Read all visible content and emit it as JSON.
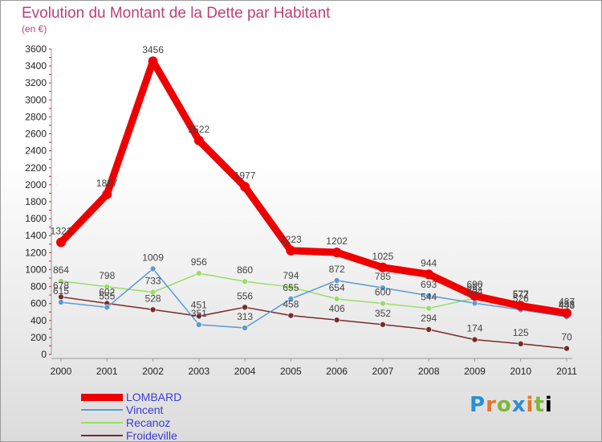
{
  "chart_data": {
    "type": "line",
    "title": "Evolution du Montant de la Dette par Habitant",
    "subtitle": "(en €)",
    "x": [
      "2000",
      "2001",
      "2002",
      "2003",
      "2004",
      "2005",
      "2006",
      "2007",
      "2008",
      "2009",
      "2010",
      "2011"
    ],
    "ylim": [
      0,
      3600
    ],
    "yticks": [
      0,
      200,
      400,
      600,
      800,
      1000,
      1200,
      1400,
      1600,
      1800,
      2000,
      2200,
      2400,
      2600,
      2800,
      3000,
      3200,
      3400,
      3600
    ],
    "grid": false,
    "legend_position": "bottom-left",
    "series": [
      {
        "name": "LOMBARD",
        "color": "#ee0000",
        "values": [
          1321,
          1887,
          3456,
          2522,
          1977,
          1223,
          1202,
          1025,
          944,
          690,
          572,
          487
        ]
      },
      {
        "name": "Vincent",
        "color": "#5b9bd5",
        "values": [
          615,
          555,
          1009,
          351,
          313,
          655,
          872,
          785,
          693,
          604,
          526,
          443
        ]
      },
      {
        "name": "Recanoz",
        "color": "#99dd66",
        "values": [
          864,
          798,
          733,
          956,
          860,
          794,
          654,
          600,
          544,
          662,
          577,
          458
        ]
      },
      {
        "name": "Froideville",
        "color": "#7a2a2a",
        "values": [
          678,
          602,
          528,
          451,
          556,
          458,
          406,
          352,
          294,
          174,
          125,
          70
        ]
      }
    ]
  },
  "logo": {
    "letters": [
      "P",
      "r",
      "o",
      "x",
      "i",
      "t",
      "i"
    ]
  }
}
